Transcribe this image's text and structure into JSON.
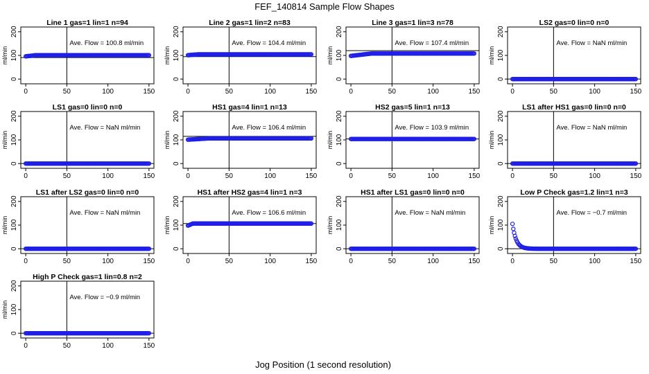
{
  "title": "FEF_140814  Sample Flow Shapes",
  "xlabel": "Jog Position (1 second resolution)",
  "chart_data": {
    "type": "scatter",
    "title": "FEF_140814  Sample Flow Shapes",
    "xlabel": "Jog Position (1 second resolution)",
    "ylabel": "ml/min",
    "xlim": [
      0,
      150
    ],
    "ylim": [
      -20,
      220
    ],
    "xticks": [
      0,
      50,
      100,
      150
    ],
    "yticks": [
      0,
      100,
      200
    ],
    "vline_x": 50,
    "panels": [
      {
        "title": "Line 1 gas=1 lin=1 n=94",
        "ave_text": "Ave. Flow =  100.8  ml/min",
        "mean": 100.8,
        "hline": 91,
        "shape": "flat",
        "start": 96,
        "level": 100.8
      },
      {
        "title": "Line 2 gas=1 lin=2 n=83",
        "ave_text": "Ave. Flow =  104.4  ml/min",
        "mean": 104.4,
        "hline": 95,
        "shape": "flat",
        "start": 101,
        "level": 104.4
      },
      {
        "title": "Line 3 gas=1 lin=3 n=78",
        "ave_text": "Ave. Flow =  107.4  ml/min",
        "mean": 107.4,
        "hline": 120,
        "shape": "rise",
        "start": 98,
        "level": 108
      },
      {
        "title": "LS2 gas=0 lin=0 n=0",
        "ave_text": "Ave. Flow =  NaN  ml/min",
        "mean": null,
        "hline": 0,
        "shape": "zero",
        "start": 0,
        "level": 0
      },
      {
        "title": "LS1 gas=0 lin=0 n=0",
        "ave_text": "Ave. Flow =  NaN  ml/min",
        "mean": null,
        "hline": 0,
        "shape": "zero",
        "start": 0,
        "level": 0
      },
      {
        "title": "HS1 gas=4 lin=1 n=13",
        "ave_text": "Ave. Flow =  106.4  ml/min",
        "mean": 106.4,
        "hline": 115,
        "shape": "rise",
        "start": 101,
        "level": 106.4
      },
      {
        "title": "HS2 gas=5 lin=1 n=13",
        "ave_text": "Ave. Flow =  103.9  ml/min",
        "mean": 103.9,
        "hline": 103.9,
        "shape": "flat",
        "start": 103.9,
        "level": 103.9
      },
      {
        "title": "LS1 after HS1 gas=0 lin=0 n=0",
        "ave_text": "Ave. Flow =  NaN  ml/min",
        "mean": null,
        "hline": 0,
        "shape": "zero",
        "start": 0,
        "level": 0
      },
      {
        "title": "LS1 after LS2 gas=0 lin=0 n=0",
        "ave_text": "Ave. Flow =  NaN  ml/min",
        "mean": null,
        "hline": 0,
        "shape": "zero",
        "start": 0,
        "level": 0
      },
      {
        "title": "HS1 after HS2 gas=4 lin=1 n=3",
        "ave_text": "Ave. Flow =  106.6  ml/min",
        "mean": 106.6,
        "hline": 106.6,
        "shape": "dip",
        "start": 98,
        "level": 106.6
      },
      {
        "title": "HS1 after LS1 gas=0 lin=0 n=0",
        "ave_text": "Ave. Flow =  NaN  ml/min",
        "mean": null,
        "hline": 0,
        "shape": "zero",
        "start": 0,
        "level": 0
      },
      {
        "title": "Low P Check gas=1.2 lin=1 n=3",
        "ave_text": "Ave. Flow =  −0.7  ml/min",
        "mean": -0.7,
        "hline": 0,
        "shape": "decay",
        "start": 105,
        "level": 0
      },
      {
        "title": "High P Check gas=1 lin=0.8 n=2",
        "ave_text": "Ave. Flow =  −0.9  ml/min",
        "mean": -0.9,
        "hline": 0,
        "shape": "zero",
        "start": 0,
        "level": 0
      }
    ]
  }
}
